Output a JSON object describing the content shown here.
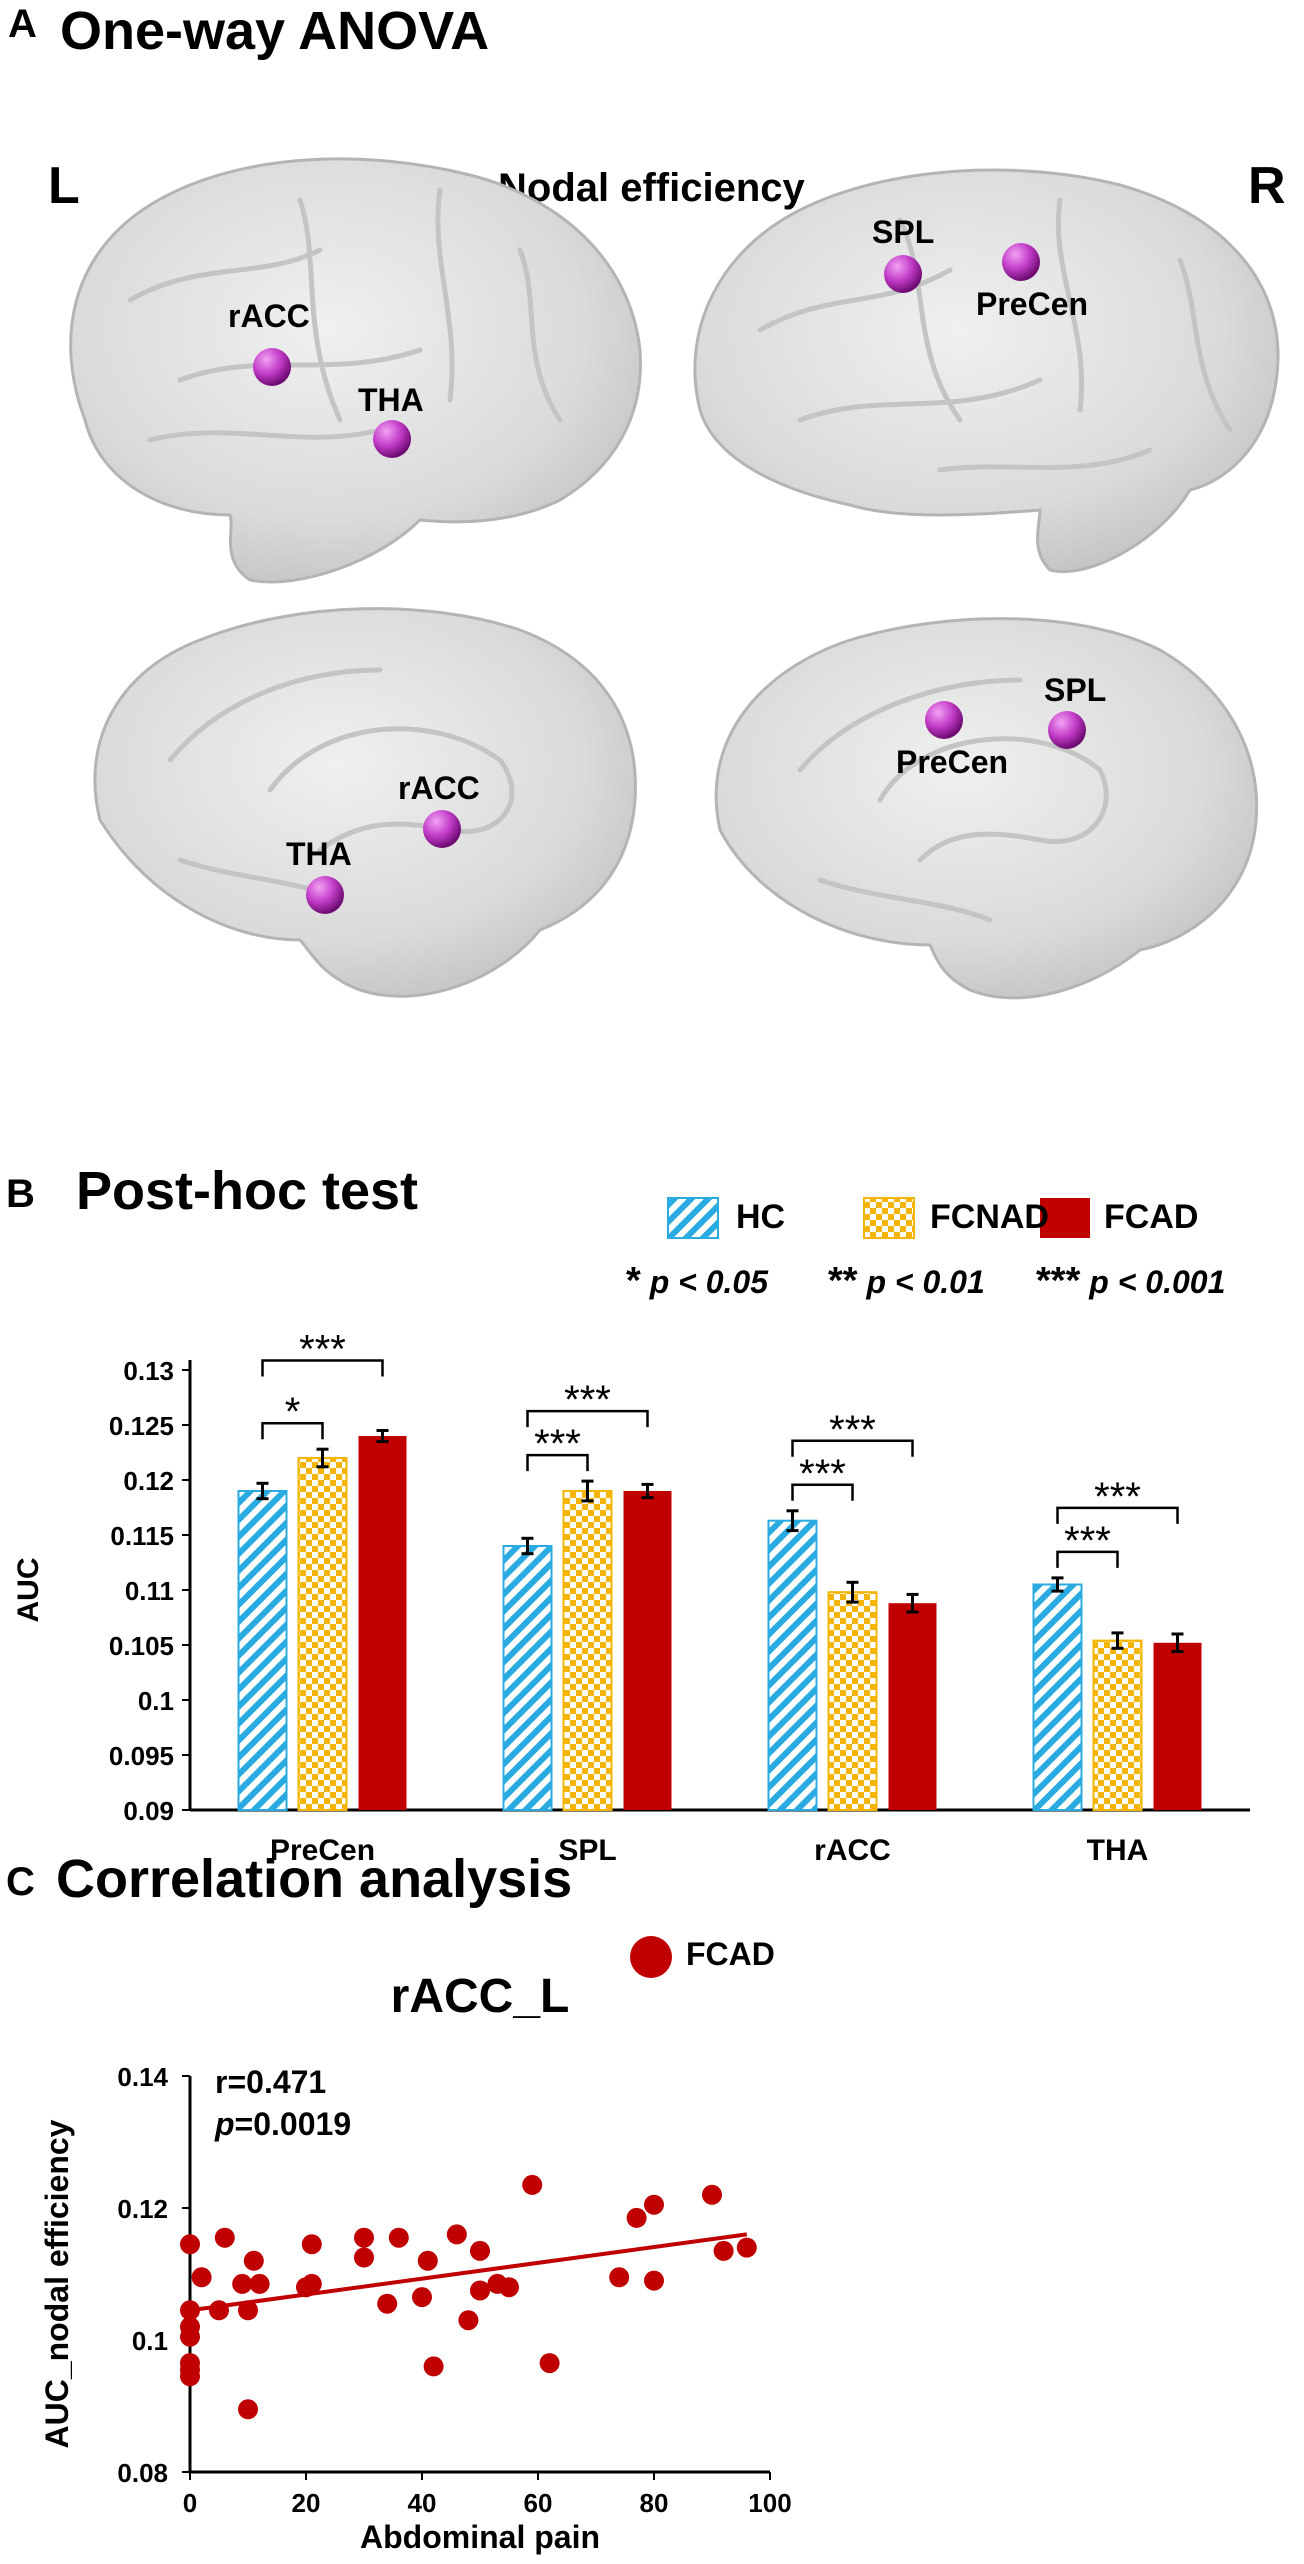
{
  "panel_a": {
    "letter": "A",
    "title": "One-way ANOVA",
    "left_label": "L",
    "right_label": "R",
    "subtitle": "Nodal efficiency",
    "nodes": {
      "lateral_left": [
        "rACC",
        "THA"
      ],
      "lateral_right": [
        "SPL",
        "PreCen"
      ],
      "medial_left": [
        "rACC",
        "THA"
      ],
      "medial_right": [
        "PreCen",
        "SPL"
      ]
    },
    "node_color": "#c23cc7"
  },
  "panel_b": {
    "letter": "B",
    "title": "Post-hoc test",
    "legend": {
      "hc": "HC",
      "fcnad": "FCNAD",
      "fcad": "FCAD"
    },
    "sig_legend": {
      "s1_stars": "*",
      "s1_text": "p < 0.05",
      "s2_stars": "**",
      "s2_text": "p < 0.01",
      "s3_stars": "***",
      "s3_text": "p < 0.001"
    }
  },
  "panel_c": {
    "letter": "C",
    "title": "Correlation analysis",
    "legend": "FCAD",
    "stat_r": "r=0.471",
    "stat_p_sym": "p",
    "stat_p_val": "=0.0019"
  },
  "chart_data": [
    {
      "type": "bar",
      "ylabel": "AUC",
      "ylim": [
        0.09,
        0.13
      ],
      "yticks": [
        "0.09",
        "0.095",
        "0.1",
        "0.105",
        "0.11",
        "0.115",
        "0.12",
        "0.125",
        "0.13"
      ],
      "categories": [
        "PreCen",
        "SPL",
        "rACC",
        "THA"
      ],
      "series": [
        {
          "name": "HC",
          "values": [
            0.119,
            0.114,
            0.1163,
            0.1105
          ],
          "errors": [
            0.0007,
            0.0007,
            0.0009,
            0.0006
          ],
          "color": "#29abe2"
        },
        {
          "name": "FCNAD",
          "values": [
            0.122,
            0.119,
            0.1098,
            0.1054
          ],
          "errors": [
            0.0008,
            0.0009,
            0.0009,
            0.0007
          ],
          "color": "#f5b400"
        },
        {
          "name": "FCAD",
          "values": [
            0.124,
            0.119,
            0.1088,
            0.1052
          ],
          "errors": [
            0.0005,
            0.0006,
            0.0008,
            0.0008
          ],
          "color": "#c00000"
        }
      ],
      "significance": [
        {
          "category": 0,
          "from": "HC",
          "to": "FCNAD",
          "stars": "*"
        },
        {
          "category": 0,
          "from": "HC",
          "to": "FCAD",
          "stars": "***"
        },
        {
          "category": 1,
          "from": "HC",
          "to": "FCNAD",
          "stars": "***"
        },
        {
          "category": 1,
          "from": "HC",
          "to": "FCAD",
          "stars": "***"
        },
        {
          "category": 2,
          "from": "HC",
          "to": "FCNAD",
          "stars": "***"
        },
        {
          "category": 2,
          "from": "HC",
          "to": "FCAD",
          "stars": "***"
        },
        {
          "category": 3,
          "from": "HC",
          "to": "FCNAD",
          "stars": "***"
        },
        {
          "category": 3,
          "from": "HC",
          "to": "FCAD",
          "stars": "***"
        }
      ]
    },
    {
      "type": "scatter",
      "title": "rACC_L",
      "xlabel": "Abdominal pain",
      "ylabel": "AUC_nodal efficiency",
      "xlim": [
        0,
        100
      ],
      "ylim": [
        0.08,
        0.14
      ],
      "xticks": [
        "0",
        "20",
        "40",
        "60",
        "80",
        "100"
      ],
      "yticks": [
        "0.08",
        "0.1",
        "0.12",
        "0.14"
      ],
      "series_name": "FCAD",
      "color": "#c00000",
      "points": [
        [
          0,
          0.1145
        ],
        [
          0,
          0.1045
        ],
        [
          0,
          0.102
        ],
        [
          0,
          0.1005
        ],
        [
          0,
          0.0955
        ],
        [
          0,
          0.0945
        ],
        [
          0,
          0.0965
        ],
        [
          2,
          0.1095
        ],
        [
          5,
          0.1045
        ],
        [
          6,
          0.1155
        ],
        [
          9,
          0.1085
        ],
        [
          10,
          0.0895
        ],
        [
          10,
          0.1045
        ],
        [
          11,
          0.112
        ],
        [
          12,
          0.1085
        ],
        [
          20,
          0.108
        ],
        [
          21,
          0.1145
        ],
        [
          21,
          0.1085
        ],
        [
          30,
          0.1155
        ],
        [
          30,
          0.1125
        ],
        [
          34,
          0.1055
        ],
        [
          36,
          0.1155
        ],
        [
          40,
          0.1065
        ],
        [
          41,
          0.112
        ],
        [
          42,
          0.096
        ],
        [
          46,
          0.116
        ],
        [
          48,
          0.103
        ],
        [
          50,
          0.1075
        ],
        [
          50,
          0.1135
        ],
        [
          53,
          0.1085
        ],
        [
          55,
          0.108
        ],
        [
          59,
          0.1235
        ],
        [
          62,
          0.0965
        ],
        [
          74,
          0.1095
        ],
        [
          77,
          0.1185
        ],
        [
          80,
          0.1205
        ],
        [
          80,
          0.109
        ],
        [
          90,
          0.122
        ],
        [
          92,
          0.1135
        ],
        [
          96,
          0.114
        ]
      ],
      "fit_line": [
        [
          0,
          0.1045
        ],
        [
          96,
          0.116
        ]
      ]
    }
  ]
}
